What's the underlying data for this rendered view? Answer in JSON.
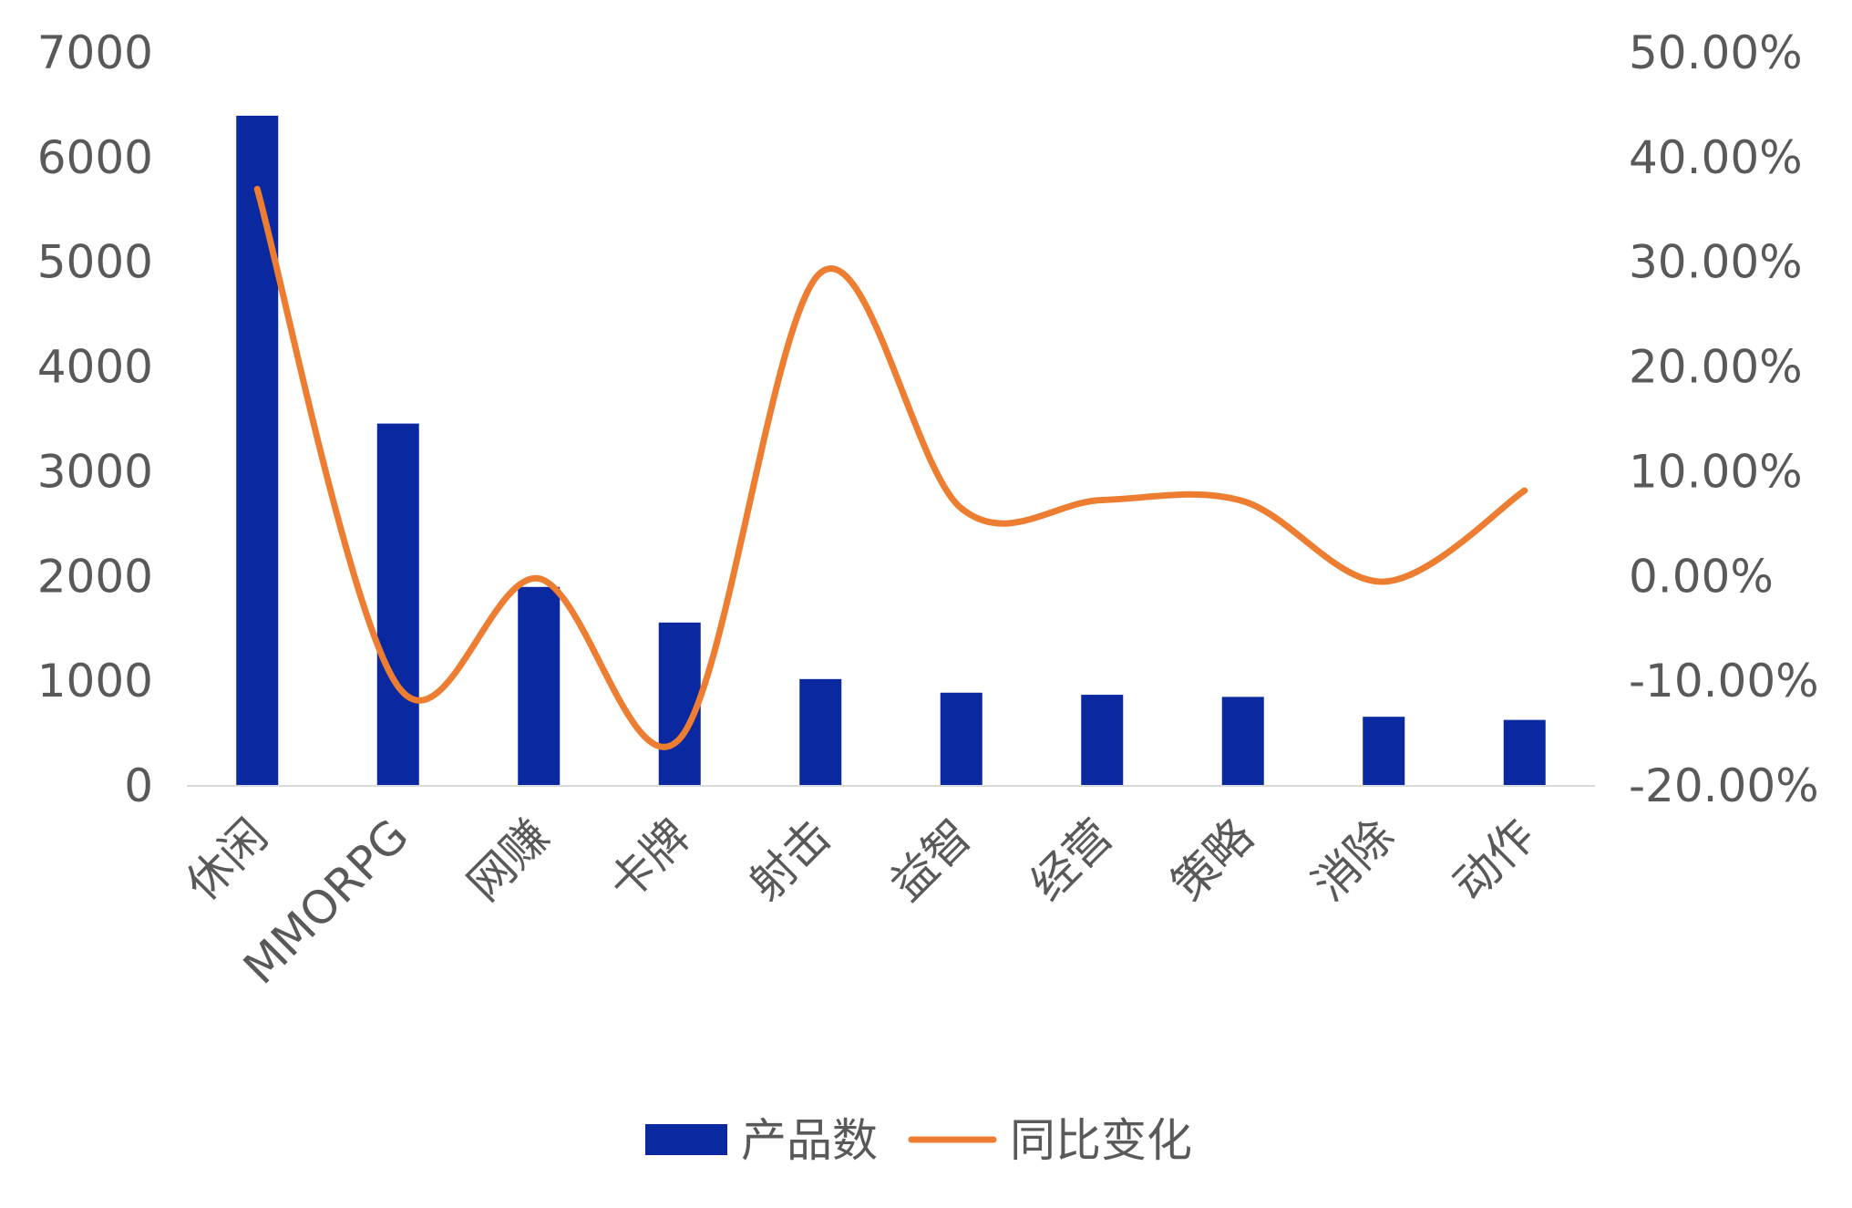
{
  "chart_data": {
    "type": "bar",
    "categories": [
      "休闲",
      "MMORPG",
      "网赚",
      "卡牌",
      "射击",
      "益智",
      "经营",
      "策略",
      "消除",
      "动作"
    ],
    "series": [
      {
        "name": "产品数",
        "type": "bar",
        "axis": "left",
        "color": "#0A28A0",
        "values": [
          6400,
          3460,
          1900,
          1560,
          1020,
          890,
          870,
          850,
          660,
          630
        ]
      },
      {
        "name": "同比变化",
        "type": "line",
        "axis": "right",
        "color": "#ED7D31",
        "smooth": true,
        "values": [
          0.37,
          -0.105,
          -0.002,
          -0.155,
          0.29,
          0.065,
          0.073,
          0.072,
          -0.005,
          0.082
        ]
      }
    ],
    "y_left": {
      "min": 0,
      "max": 7000,
      "ticks": [
        "0",
        "1000",
        "2000",
        "3000",
        "4000",
        "5000",
        "6000",
        "7000"
      ]
    },
    "y_right": {
      "min": -0.2,
      "max": 0.5,
      "ticks": [
        "-20.00%",
        "-10.00%",
        "0.00%",
        "10.00%",
        "20.00%",
        "30.00%",
        "40.00%",
        "50.00%"
      ]
    },
    "grid": false,
    "legend_position": "bottom",
    "title": "",
    "xlabel": "",
    "ylabel": ""
  }
}
